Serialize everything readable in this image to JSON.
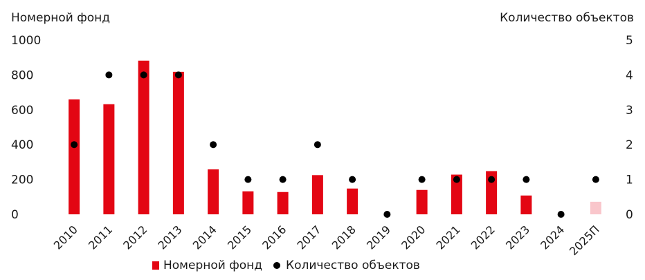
{
  "chart_data": {
    "type": "bar",
    "left_axis_title": "Номерной  фонд",
    "right_axis_title": "Количество объектов",
    "categories": [
      "2010",
      "2011",
      "2012",
      "2013",
      "2014",
      "2015",
      "2016",
      "2017",
      "2018",
      "2019",
      "2020",
      "2021",
      "2022",
      "2023",
      "2024",
      "2025П"
    ],
    "series": [
      {
        "name": "Номерной фонд",
        "kind": "bar",
        "axis": "left",
        "color": "#e30613",
        "projected_color": "#f9c6cb",
        "values": [
          660,
          632,
          882,
          818,
          258,
          132,
          128,
          225,
          148,
          0,
          140,
          228,
          248,
          108,
          0,
          72
        ]
      },
      {
        "name": "Количество объектов",
        "kind": "scatter",
        "axis": "right",
        "color": "#000000",
        "values": [
          2,
          4,
          4,
          4,
          2,
          1,
          1,
          2,
          1,
          0,
          1,
          1,
          1,
          1,
          0,
          1
        ]
      }
    ],
    "left_ylim": [
      0,
      1000
    ],
    "left_ticks": [
      "1000",
      "800",
      "600",
      "400",
      "200",
      "0"
    ],
    "right_ylim": [
      0,
      5
    ],
    "right_ticks": [
      "5",
      "4",
      "3",
      "2",
      "1",
      "0"
    ],
    "projected_category": "2025П",
    "grid": false,
    "legend_position": "bottom"
  },
  "legend": {
    "bar_label": "Номерной фонд",
    "dot_label": "Количество объектов"
  }
}
